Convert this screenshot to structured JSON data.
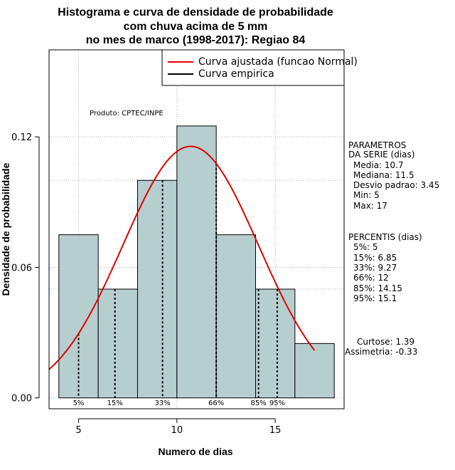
{
  "chart_data": {
    "type": "histogram",
    "title_lines": [
      "Histograma e curva de densidade de probabilidade",
      "com chuva acima de 5 mm",
      "no mes de marco (1998-2017): Regiao 84"
    ],
    "xlabel": "Numero de dias",
    "ylabel": "Densidade de probabilidade",
    "xlim": [
      3.5,
      18.5
    ],
    "ylim": [
      -0.005,
      0.16
    ],
    "x_ticks": [
      5,
      10,
      15
    ],
    "y_ticks": [
      0.0,
      0.06,
      0.12
    ],
    "y_tick_labels": [
      "0.00",
      "0.06",
      "0.12"
    ],
    "bins": [
      {
        "start": 4,
        "end": 6,
        "density": 0.075
      },
      {
        "start": 6,
        "end": 8,
        "density": 0.05
      },
      {
        "start": 8,
        "end": 10,
        "density": 0.1
      },
      {
        "start": 10,
        "end": 12,
        "density": 0.125
      },
      {
        "start": 12,
        "end": 14,
        "density": 0.075
      },
      {
        "start": 14,
        "end": 16,
        "density": 0.05
      },
      {
        "start": 16,
        "end": 18,
        "density": 0.025
      }
    ],
    "bar_color": "#b7cecf",
    "normal_curve": {
      "mean": 10.7,
      "sd": 3.45,
      "x_range": [
        3.5,
        17
      ],
      "color": "#e00000"
    },
    "percentile_lines": [
      {
        "label": "5%",
        "value": 5
      },
      {
        "label": "15%",
        "value": 6.85
      },
      {
        "label": "33%",
        "value": 9.27
      },
      {
        "label": "66%",
        "value": 12
      },
      {
        "label": "85%",
        "value": 14.15
      },
      {
        "label": "95%",
        "value": 15.1
      }
    ],
    "h_grid_values": [
      0.1,
      0.05
    ],
    "legend": [
      {
        "label": "Curva ajustada (funcao Normal)",
        "color": "#e00000"
      },
      {
        "label": "Curva empirica",
        "color": "#000000"
      }
    ],
    "product_label": "Produto: CPTEC/INPE",
    "parametros": {
      "title_lines": [
        "PARAMETROS",
        "DA SERIE (dias)"
      ],
      "lines": [
        "Media: 10.7",
        "Mediana: 11.5",
        "Desvio padrao: 3.45",
        "Min: 5",
        "Max: 17"
      ]
    },
    "percentis": {
      "title": "PERCENTIS (dias)",
      "lines": [
        "5%: 5",
        "15%: 6.85",
        "33%: 9.27",
        "66%: 12",
        "85%: 14.15",
        "95%: 15.1"
      ]
    },
    "curtose": "Curtose: 1.39",
    "assimetria": "Assimetria: -0.33"
  }
}
